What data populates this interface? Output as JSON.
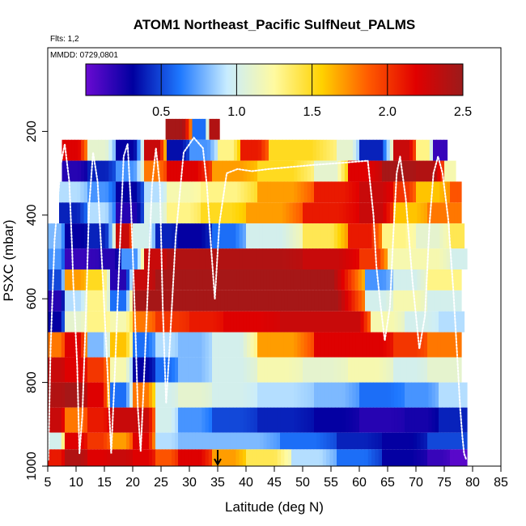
{
  "chart_data": {
    "type": "heatmap",
    "title": "ATOM1 Northeast_Pacific SulfNeut_PALMS",
    "annotations": [
      "Flts: 1,2",
      "MMDD: 0729,0801"
    ],
    "xlabel": "Latitude (deg N)",
    "ylabel": "PSXC (mbar)",
    "xlim": [
      5,
      85
    ],
    "ylim": [
      1000,
      0
    ],
    "x_ticks": [
      5,
      10,
      15,
      20,
      25,
      30,
      35,
      40,
      45,
      50,
      55,
      60,
      65,
      70,
      75,
      80,
      85
    ],
    "y_ticks": [
      200,
      400,
      600,
      800,
      1000
    ],
    "colorbar": {
      "range": [
        0,
        2.5
      ],
      "ticks": [
        0.5,
        1.0,
        1.5,
        2.0,
        2.5
      ],
      "tick_labels": [
        "0.5",
        "1.0",
        "1.5",
        "2.0",
        "2.5"
      ],
      "colors": [
        "#6a0ad2",
        "#0000a0",
        "#1e78ff",
        "#c8ecff",
        "#fffaa0",
        "#ffd200",
        "#ff5a00",
        "#e10000",
        "#9b1b1b"
      ]
    },
    "marker": {
      "latitude": 35,
      "symbol": "arrow-down"
    },
    "bands": [
      {
        "p_top": 170,
        "p_bot": 220,
        "segments": [
          [
            25.8,
            30.5,
            2.45
          ],
          [
            30.5,
            33.5,
            0.6
          ],
          [
            33.5,
            35.3,
            2.4
          ]
        ]
      },
      {
        "p_top": 220,
        "p_bot": 270,
        "segments": [
          [
            7.5,
            12,
            2.2
          ],
          [
            12,
            17,
            1.1
          ],
          [
            17,
            22,
            0.3
          ],
          [
            22,
            26,
            2.3
          ],
          [
            26,
            30,
            0.35
          ],
          [
            30,
            35,
            0.7
          ],
          [
            35,
            39,
            1.3
          ],
          [
            39,
            44,
            2.1
          ],
          [
            44,
            56,
            1.5
          ],
          [
            56,
            60,
            1.1
          ],
          [
            60,
            66,
            0.4
          ],
          [
            66,
            70,
            2.3
          ],
          [
            70,
            73,
            1.3
          ],
          [
            73,
            75.5,
            0.15
          ]
        ]
      },
      {
        "p_top": 270,
        "p_bot": 320,
        "segments": [
          [
            7.5,
            12,
            0.2
          ],
          [
            12,
            17,
            0.4
          ],
          [
            17,
            22,
            0.7
          ],
          [
            22,
            26,
            1.8
          ],
          [
            26,
            34,
            2.2
          ],
          [
            34,
            42,
            1.7
          ],
          [
            42,
            52,
            1.5
          ],
          [
            52,
            58,
            1.1
          ],
          [
            58,
            64,
            2.2
          ],
          [
            64,
            70,
            2.45
          ],
          [
            70,
            75,
            2.4
          ],
          [
            75,
            77,
            1.2
          ]
        ]
      },
      {
        "p_top": 320,
        "p_bot": 370,
        "segments": [
          [
            7,
            12,
            0.9
          ],
          [
            12,
            17,
            0.7
          ],
          [
            17,
            22,
            0.3
          ],
          [
            22,
            26,
            0.9
          ],
          [
            26,
            32,
            1.2
          ],
          [
            32,
            42,
            1.3
          ],
          [
            42,
            52,
            1.7
          ],
          [
            52,
            60,
            2.1
          ],
          [
            60,
            66,
            2.3
          ],
          [
            66,
            70,
            2.0
          ],
          [
            70,
            76,
            1.6
          ],
          [
            76,
            78,
            1.9
          ]
        ]
      },
      {
        "p_top": 370,
        "p_bot": 420,
        "segments": [
          [
            7,
            12,
            0.4
          ],
          [
            12,
            17,
            0.9
          ],
          [
            17,
            22,
            0.2
          ],
          [
            22,
            26,
            1.0
          ],
          [
            26,
            32,
            1.3
          ],
          [
            32,
            40,
            1.5
          ],
          [
            40,
            50,
            1.7
          ],
          [
            50,
            60,
            2.1
          ],
          [
            60,
            66,
            2.3
          ],
          [
            66,
            72,
            1.6
          ],
          [
            72,
            78,
            1.8
          ]
        ]
      },
      {
        "p_top": 420,
        "p_bot": 480,
        "segments": [
          [
            5,
            8,
            0.8
          ],
          [
            8,
            12,
            0.3
          ],
          [
            12,
            17,
            0.4
          ],
          [
            17,
            20,
            2.3
          ],
          [
            20,
            24,
            1.0
          ],
          [
            24,
            28,
            0.4
          ],
          [
            28,
            34,
            0.3
          ],
          [
            34,
            40,
            0.6
          ],
          [
            40,
            50,
            1.0
          ],
          [
            50,
            58,
            1.4
          ],
          [
            58,
            64,
            2.1
          ],
          [
            64,
            70,
            1.3
          ],
          [
            70,
            76,
            1.1
          ],
          [
            76,
            78.5,
            1.4
          ]
        ]
      },
      {
        "p_top": 480,
        "p_bot": 530,
        "segments": [
          [
            5,
            8,
            0.7
          ],
          [
            8,
            14,
            0.15
          ],
          [
            14,
            18,
            0.2
          ],
          [
            18,
            22,
            0.7
          ],
          [
            22,
            26,
            2.3
          ],
          [
            26,
            30,
            2.4
          ],
          [
            30,
            40,
            2.4
          ],
          [
            40,
            50,
            2.4
          ],
          [
            50,
            60,
            2.3
          ],
          [
            60,
            65,
            2.0
          ],
          [
            65,
            70,
            1.2
          ],
          [
            70,
            76,
            1.2
          ],
          [
            76,
            79,
            1.0
          ]
        ]
      },
      {
        "p_top": 530,
        "p_bot": 580,
        "segments": [
          [
            5,
            8,
            0.5
          ],
          [
            8,
            12,
            1.7
          ],
          [
            12,
            16,
            1.5
          ],
          [
            16,
            20,
            0.2
          ],
          [
            20,
            24,
            2.3
          ],
          [
            24,
            30,
            2.45
          ],
          [
            30,
            36,
            2.45
          ],
          [
            36,
            46,
            2.45
          ],
          [
            46,
            61,
            2.45
          ],
          [
            61,
            66,
            0.7
          ],
          [
            66,
            72,
            1.0
          ],
          [
            72,
            78,
            1.3
          ]
        ]
      },
      {
        "p_top": 580,
        "p_bot": 630,
        "segments": [
          [
            5,
            8,
            0.2
          ],
          [
            8,
            12,
            0.9
          ],
          [
            12,
            16,
            1.3
          ],
          [
            16,
            20,
            0.6
          ],
          [
            20,
            24,
            2.45
          ],
          [
            24,
            30,
            2.45
          ],
          [
            30,
            38,
            2.45
          ],
          [
            38,
            48,
            2.45
          ],
          [
            48,
            61,
            2.45
          ],
          [
            61,
            66,
            1.0
          ],
          [
            66,
            72,
            1.2
          ],
          [
            72,
            78,
            1.0
          ]
        ]
      },
      {
        "p_top": 630,
        "p_bot": 680,
        "segments": [
          [
            5,
            8,
            0.3
          ],
          [
            8,
            12,
            1.1
          ],
          [
            12,
            16,
            1.3
          ],
          [
            16,
            20,
            1.2
          ],
          [
            20,
            24,
            1.8
          ],
          [
            24,
            30,
            2.0
          ],
          [
            30,
            36,
            2.1
          ],
          [
            36,
            46,
            2.2
          ],
          [
            46,
            56,
            2.3
          ],
          [
            56,
            62,
            2.3
          ],
          [
            62,
            68,
            1.2
          ],
          [
            68,
            74,
            1.0
          ],
          [
            74,
            78.5,
            0.9
          ]
        ]
      },
      {
        "p_top": 680,
        "p_bot": 740,
        "segments": [
          [
            5,
            8,
            1.8
          ],
          [
            8,
            12,
            2.2
          ],
          [
            12,
            16,
            0.8
          ],
          [
            16,
            20,
            1.6
          ],
          [
            20,
            24,
            0.6
          ],
          [
            24,
            28,
            0.9
          ],
          [
            28,
            34,
            0.8
          ],
          [
            34,
            42,
            1.0
          ],
          [
            42,
            52,
            1.7
          ],
          [
            52,
            60,
            2.2
          ],
          [
            60,
            66,
            2.2
          ],
          [
            66,
            72,
            2.0
          ],
          [
            72,
            78,
            1.8
          ]
        ]
      },
      {
        "p_top": 740,
        "p_bot": 800,
        "segments": [
          [
            5,
            8,
            2.3
          ],
          [
            8,
            12,
            2.2
          ],
          [
            12,
            16,
            2.0
          ],
          [
            16,
            20,
            1.2
          ],
          [
            20,
            24,
            0.3
          ],
          [
            24,
            28,
            0.6
          ],
          [
            28,
            34,
            0.8
          ],
          [
            34,
            42,
            1.0
          ],
          [
            42,
            50,
            1.2
          ],
          [
            50,
            58,
            1.1
          ],
          [
            58,
            66,
            1.2
          ],
          [
            66,
            72,
            1.0
          ],
          [
            72,
            78,
            1.1
          ]
        ]
      },
      {
        "p_top": 800,
        "p_bot": 860,
        "segments": [
          [
            5,
            8,
            2.4
          ],
          [
            8,
            12,
            2.45
          ],
          [
            12,
            16,
            2.2
          ],
          [
            16,
            20,
            0.6
          ],
          [
            20,
            24,
            1.8
          ],
          [
            24,
            28,
            1.0
          ],
          [
            28,
            34,
            1.1
          ],
          [
            34,
            42,
            1.0
          ],
          [
            42,
            52,
            0.9
          ],
          [
            52,
            60,
            0.8
          ],
          [
            60,
            68,
            0.6
          ],
          [
            68,
            74,
            0.7
          ],
          [
            74,
            79,
            0.9
          ]
        ]
      },
      {
        "p_top": 860,
        "p_bot": 920,
        "segments": [
          [
            5,
            8,
            2.3
          ],
          [
            8,
            12,
            1.8
          ],
          [
            12,
            16,
            2.1
          ],
          [
            16,
            20,
            2.3
          ],
          [
            20,
            24,
            2.3
          ],
          [
            24,
            28,
            1.0
          ],
          [
            28,
            34,
            0.7
          ],
          [
            34,
            42,
            0.5
          ],
          [
            42,
            52,
            0.4
          ],
          [
            52,
            60,
            0.3
          ],
          [
            60,
            68,
            0.2
          ],
          [
            68,
            74,
            0.25
          ],
          [
            74,
            79,
            0.4
          ]
        ]
      },
      {
        "p_top": 920,
        "p_bot": 960,
        "segments": [
          [
            5,
            8,
            1.0
          ],
          [
            8,
            12,
            2.2
          ],
          [
            12,
            16,
            2.0
          ],
          [
            16,
            20,
            1.7
          ],
          [
            20,
            24,
            2.2
          ],
          [
            24,
            28,
            0.9
          ],
          [
            28,
            36,
            0.8
          ],
          [
            36,
            46,
            0.8
          ],
          [
            46,
            56,
            0.6
          ],
          [
            56,
            64,
            0.4
          ],
          [
            64,
            72,
            0.3
          ],
          [
            72,
            79,
            0.5
          ]
        ]
      },
      {
        "p_top": 960,
        "p_bot": 1000,
        "segments": [
          [
            5,
            8,
            2.1
          ],
          [
            8,
            12,
            2.4
          ],
          [
            12,
            16,
            2.2
          ],
          [
            16,
            20,
            2.3
          ],
          [
            20,
            24,
            2.2
          ],
          [
            24,
            28,
            1.9
          ],
          [
            28,
            34,
            2.2
          ],
          [
            34,
            40,
            1.7
          ],
          [
            40,
            48,
            1.4
          ],
          [
            48,
            56,
            0.9
          ],
          [
            56,
            64,
            0.6
          ],
          [
            64,
            72,
            0.3
          ],
          [
            72,
            76,
            0.15
          ],
          [
            76,
            79,
            0.05
          ]
        ]
      }
    ],
    "flight_track": {
      "latitude": [
        5.1,
        5.5,
        6.2,
        7.3,
        8,
        8.8,
        9.3,
        9.5,
        10.2,
        10.6,
        11.1,
        11.8,
        12.3,
        13,
        13.8,
        14.6,
        15.5,
        16.2,
        16.9,
        17.6,
        18.4,
        19.1,
        19.7,
        20.4,
        20.9,
        21.4,
        21.9,
        22.6,
        23.4,
        24.1,
        24.8,
        25.3,
        25.9,
        26.5,
        27.6,
        29,
        30.8,
        32.4,
        33.1,
        33.8,
        34.5,
        35.3,
        36.6,
        38.5,
        41,
        44,
        48,
        52,
        57,
        61.5,
        62.5,
        63,
        63.7,
        64.5,
        65.4,
        66,
        66.6,
        67.2,
        68.2,
        69.4,
        70.6,
        71.6,
        72.4,
        73.1,
        73.9,
        74.7,
        75.7,
        76.6,
        77.3,
        77.8,
        78.2,
        78.5,
        78.9
      ],
      "pressure": [
        985,
        720,
        460,
        280,
        230,
        320,
        480,
        560,
        760,
        970,
        880,
        610,
        380,
        250,
        320,
        520,
        760,
        970,
        760,
        520,
        260,
        230,
        380,
        640,
        860,
        965,
        820,
        600,
        330,
        240,
        330,
        620,
        850,
        720,
        450,
        250,
        215,
        240,
        330,
        470,
        600,
        420,
        300,
        290,
        295,
        290,
        285,
        280,
        275,
        270,
        400,
        520,
        610,
        700,
        620,
        450,
        300,
        260,
        360,
        560,
        720,
        640,
        420,
        300,
        260,
        300,
        410,
        580,
        740,
        860,
        930,
        970,
        985
      ]
    }
  }
}
